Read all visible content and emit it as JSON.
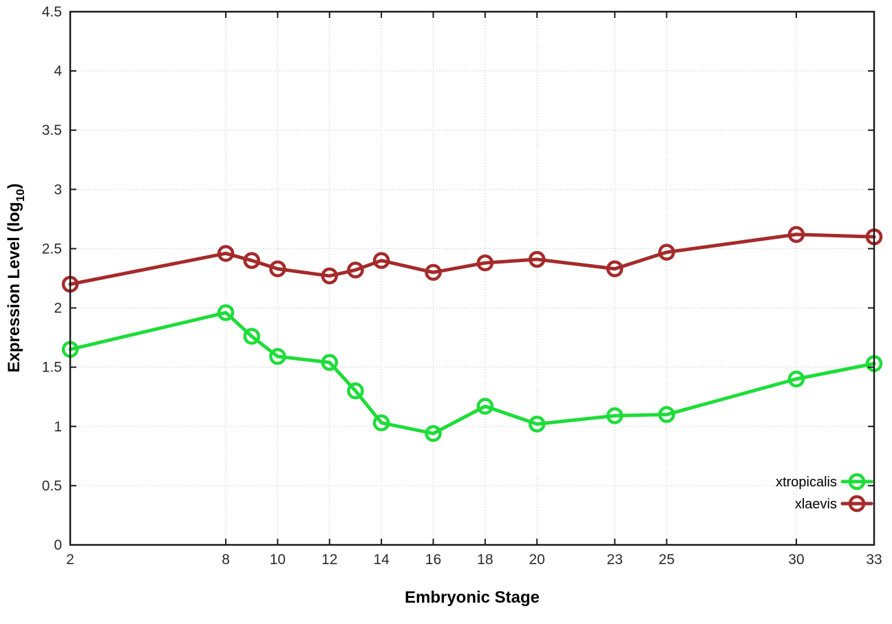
{
  "chart_data": {
    "type": "line",
    "title": "",
    "xlabel": "Embryonic Stage",
    "ylabel": "Expression Level (log10)",
    "ylabel_pre": "Expression Level (log",
    "ylabel_sub": "10",
    "ylabel_post": ")",
    "xlim": [
      2,
      33
    ],
    "ylim": [
      0,
      4.5
    ],
    "x_ticks": [
      2,
      8,
      10,
      12,
      14,
      16,
      18,
      20,
      23,
      25,
      30,
      33
    ],
    "y_ticks": [
      0,
      0.5,
      1,
      1.5,
      2,
      2.5,
      3,
      3.5,
      4,
      4.5
    ],
    "grid": true,
    "legend_position": "bottom-right",
    "x": [
      2,
      8,
      9,
      10,
      12,
      13,
      14,
      16,
      18,
      20,
      23,
      25,
      30,
      33
    ],
    "series": [
      {
        "name": "xtropicalis",
        "color": "#1ddd38",
        "values": [
          1.65,
          1.96,
          1.76,
          1.59,
          1.54,
          1.3,
          1.03,
          0.94,
          1.17,
          1.02,
          1.09,
          1.1,
          1.4,
          1.53
        ]
      },
      {
        "name": "xlaevis",
        "color": "#a52a2a",
        "values": [
          2.2,
          2.46,
          2.4,
          2.33,
          2.27,
          2.32,
          2.4,
          2.3,
          2.38,
          2.41,
          2.33,
          2.47,
          2.62,
          2.6
        ]
      }
    ],
    "style": {
      "border_color": "#1a1a1a",
      "grid_color": "#bcbcbc",
      "tick_color": "#1a1a1a",
      "background": "#ffffff"
    }
  }
}
